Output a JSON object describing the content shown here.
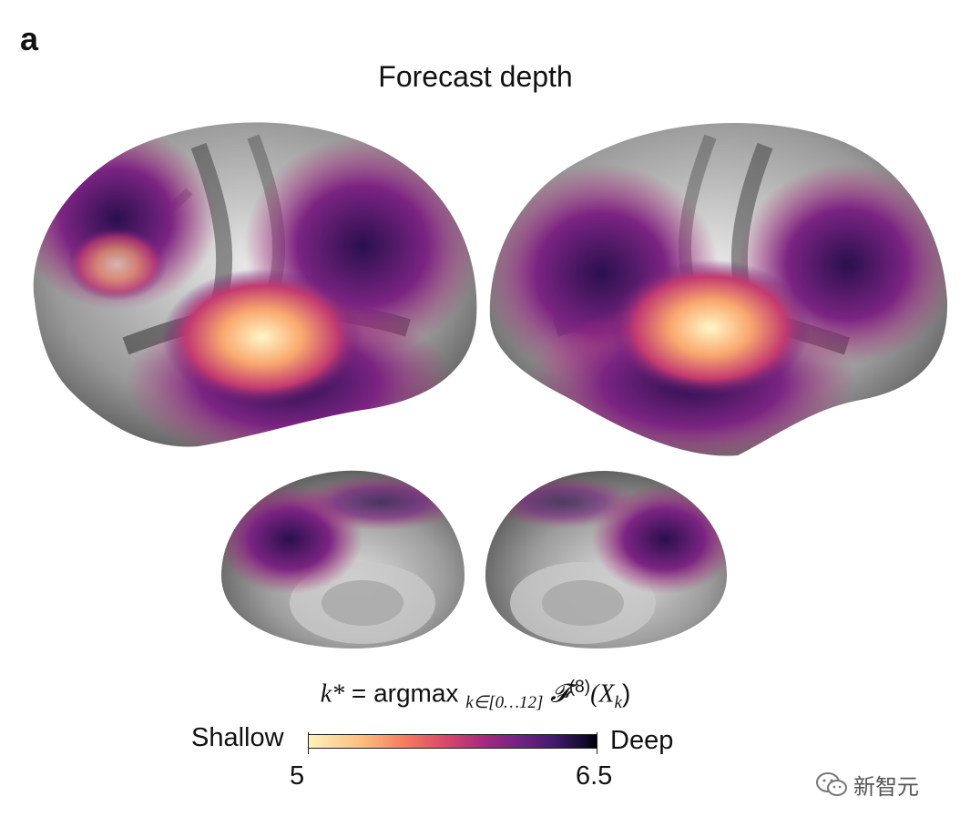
{
  "panel_label": "a",
  "title": "Forecast depth",
  "formula": {
    "lhs": "k*",
    "equals": " = argmax ",
    "subscript": "k∈[0…12]",
    "func": "𝓕",
    "superscript": "(8)",
    "arg_open": "(X",
    "arg_sub": "k",
    "arg_close": ")"
  },
  "colorbar": {
    "left_label": "Shallow",
    "right_label": "Deep",
    "min_tick": "5",
    "max_tick": "6.5",
    "colormap": [
      "#fdf2b9",
      "#fcbf7e",
      "#f5785e",
      "#d9466b",
      "#a92b7c",
      "#762384",
      "#451a6e",
      "#000004"
    ]
  },
  "views": [
    "left-lateral-hemisphere",
    "right-lateral-hemisphere",
    "left-medial-hemisphere",
    "right-medial-hemisphere"
  ],
  "watermark": "新智元"
}
